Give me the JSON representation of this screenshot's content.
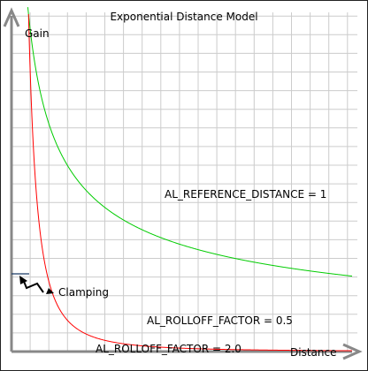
{
  "chart_data": {
    "type": "line",
    "title": "Exponential Distance Model",
    "ylabel": "Gain",
    "xlabel": "Distance",
    "grid": true,
    "x_range": [
      0,
      20
    ],
    "y_range": [
      0,
      1
    ],
    "series": [
      {
        "name": "AL_ROLLOFF_FACTOR = 0.5",
        "color": "#00cc00",
        "rolloff": 0.5,
        "reference_distance": 1,
        "label_anchor_x": 9.3
      },
      {
        "name": "AL_ROLLOFF_FACTOR = 2.0",
        "color": "#ff0000",
        "rolloff": 2.0,
        "reference_distance": 1,
        "label_anchor_x": 9.0
      }
    ],
    "annotations": {
      "reference_distance": "AL_REFERENCE_DISTANCE = 1",
      "clamping": "Clamping",
      "clamp_at_x": 1
    }
  },
  "colors": {
    "grid": "#cccccc",
    "axis": "#888888",
    "clamp_line": "#1a3a66"
  }
}
